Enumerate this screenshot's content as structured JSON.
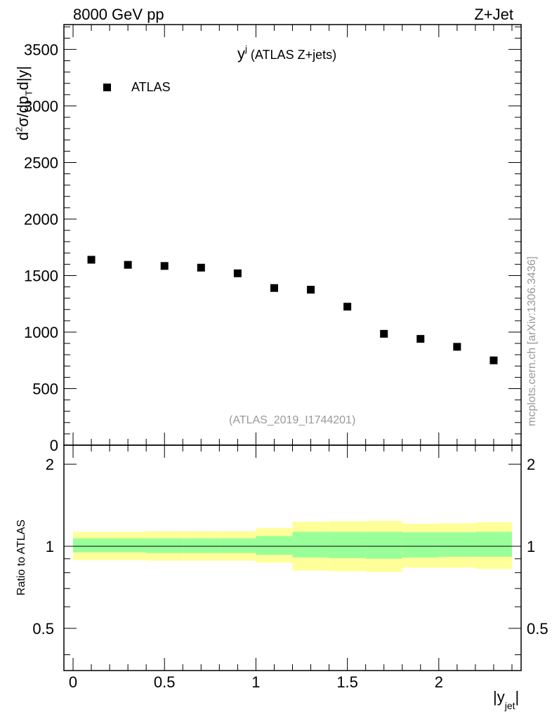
{
  "header": {
    "left": "8000 GeV pp",
    "right": "Z+Jet"
  },
  "side_label": "mcplots.cern.ch [arXiv:1306.3436]",
  "chart_data": [
    {
      "type": "scatter",
      "title_main": "y",
      "title_sup": "j",
      "title_rest": " (ATLAS Z+jets)",
      "analysis_tag": "(ATLAS_2019_I1744201)",
      "ylabel_parts": [
        "d",
        "2",
        "σ/dp",
        "T",
        "d",
        "|y|"
      ],
      "legend": {
        "placement": "top-left",
        "entries": [
          "ATLAS"
        ]
      },
      "xlim": [
        -0.05,
        2.45
      ],
      "ylim": [
        0,
        3720
      ],
      "y_ticks": [
        0,
        500,
        1000,
        1500,
        2000,
        2500,
        3000,
        3500
      ],
      "y_tick_labels": [
        "0",
        "500",
        "1000",
        "1500",
        "2000",
        "2500",
        "3000",
        "3500"
      ],
      "series": [
        {
          "name": "ATLAS",
          "x": [
            0.1,
            0.3,
            0.5,
            0.7,
            0.9,
            1.1,
            1.3,
            1.5,
            1.7,
            1.9,
            2.1,
            2.3
          ],
          "y": [
            1640,
            1595,
            1585,
            1570,
            1520,
            1390,
            1375,
            1225,
            985,
            940,
            870,
            750
          ]
        }
      ]
    },
    {
      "type": "area",
      "ylabel": "Ratio to ATLAS",
      "xlabel_main": "|y",
      "xlabel_sub": "jet",
      "xlabel_end": "|",
      "xlim": [
        -0.05,
        2.45
      ],
      "ylim": [
        0.35,
        2.35
      ],
      "y_ticks": [
        0.5,
        1,
        2
      ],
      "y_tick_labels": [
        "0.5",
        "1",
        "2"
      ],
      "x_ticks": [
        0,
        0.5,
        1,
        1.5,
        2
      ],
      "x_tick_labels": [
        "0",
        "0.5",
        "1",
        "1.5",
        "2"
      ],
      "reference_line": 1,
      "bins": [
        0,
        0.2,
        0.4,
        0.6,
        0.8,
        1.0,
        1.2,
        1.4,
        1.6,
        1.8,
        2.0,
        2.2,
        2.4
      ],
      "band_colors": {
        "total": "#ffff99",
        "stat": "#99ff99",
        "line": "#000000"
      },
      "band_total": {
        "lo": [
          0.89,
          0.89,
          0.885,
          0.885,
          0.885,
          0.87,
          0.815,
          0.81,
          0.805,
          0.835,
          0.835,
          0.825
        ],
        "hi": [
          1.13,
          1.13,
          1.135,
          1.135,
          1.135,
          1.165,
          1.23,
          1.235,
          1.24,
          1.21,
          1.215,
          1.225
        ]
      },
      "band_stat": {
        "lo": [
          0.95,
          0.95,
          0.945,
          0.945,
          0.945,
          0.93,
          0.91,
          0.905,
          0.9,
          0.91,
          0.915,
          0.915
        ],
        "hi": [
          1.07,
          1.07,
          1.07,
          1.07,
          1.07,
          1.09,
          1.13,
          1.13,
          1.13,
          1.125,
          1.125,
          1.13
        ]
      }
    }
  ]
}
